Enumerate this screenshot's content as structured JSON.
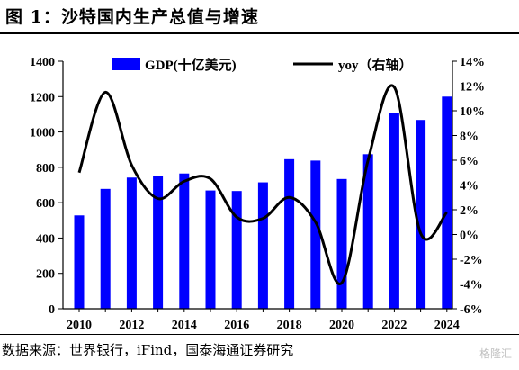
{
  "title": "图 1：沙特国内生产总值与增速",
  "source": "数据来源：世界银行，iFind，国泰海通证券研究",
  "watermark": "格隆汇",
  "colors": {
    "bar": "#0000ff",
    "line": "#000000"
  },
  "chart_data": {
    "type": "bar",
    "x": [
      2010,
      2011,
      2012,
      2013,
      2014,
      2015,
      2016,
      2017,
      2018,
      2019,
      2020,
      2021,
      2022,
      2023,
      2024
    ],
    "series": [
      {
        "name": "GDP(十亿美元)",
        "type": "bar",
        "axis": "left",
        "values": [
          528,
          678,
          742,
          753,
          765,
          669,
          666,
          715,
          846,
          838,
          734,
          874,
          1108,
          1068,
          1200
        ]
      },
      {
        "name": "yoy（右轴）",
        "type": "line",
        "axis": "right",
        "values": [
          5.0,
          11.5,
          5.6,
          2.9,
          4.3,
          4.5,
          1.4,
          1.3,
          3.0,
          1.0,
          -3.9,
          6.0,
          11.9,
          0.1,
          1.8
        ]
      }
    ],
    "x_ticks": [
      "2010",
      "2012",
      "2014",
      "2016",
      "2018",
      "2020",
      "2022",
      "2024"
    ],
    "y_left": {
      "min": 0,
      "max": 1400,
      "step": 200,
      "ticks": [
        "0",
        "200",
        "400",
        "600",
        "800",
        "1000",
        "1200",
        "1400"
      ]
    },
    "y_right": {
      "min": -6,
      "max": 14,
      "step": 2,
      "ticks": [
        "-6%",
        "-4%",
        "-2%",
        "0%",
        "2%",
        "4%",
        "6%",
        "8%",
        "10%",
        "12%",
        "14%"
      ]
    },
    "legend_position": "top",
    "grid": false
  }
}
